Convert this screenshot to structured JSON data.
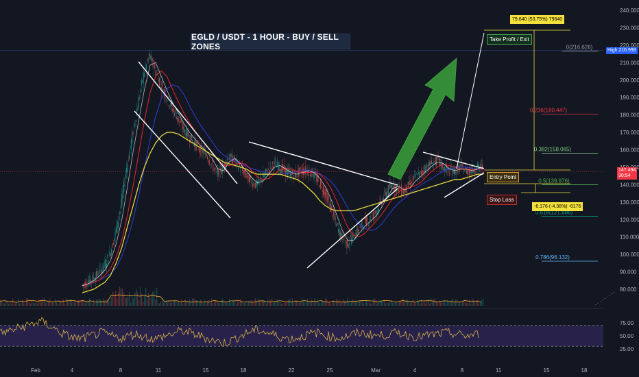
{
  "title": "EGLD / USDT - 1 HOUR - BUY / SELL ZONES",
  "colors": {
    "background": "#131722",
    "candle_up": "#26a69a",
    "candle_down": "#ef5350",
    "ma_yellow": "#e7d83b",
    "ma_blue": "#2f39c8",
    "ma_red": "#d8252a",
    "ma_white": "#ffffff",
    "rsi": "#d9b24a",
    "arrow": "#3aa23a"
  },
  "labels": {
    "take_profit": "Take Profit / Exit",
    "entry": "Entry Point",
    "stop_loss": "Stop Loss",
    "target_tag": "79.640 (53.75%) 79640",
    "stop_tag": "-6.176 (-4.38%) -6176",
    "high_tag_label": "High",
    "high_tag_value": "216.998",
    "price_tag_value": "147.494",
    "price_tag_timer": "30:54"
  },
  "chart_data": {
    "type": "line",
    "title": "EGLD / USDT - 1 HOUR - BUY / SELL ZONES",
    "y_ticks": [
      "240.000",
      "230.000",
      "220.000",
      "210.000",
      "200.000",
      "190.000",
      "180.000",
      "170.000",
      "160.000",
      "150.000",
      "140.000",
      "130.000",
      "120.000",
      "110.000",
      "100.000",
      "90.000",
      "80.000"
    ],
    "x_ticks": [
      "Feb",
      "4",
      "8",
      "11",
      "15",
      "18",
      "22",
      "25",
      "Mar",
      "4",
      "8",
      "11",
      "15",
      "18"
    ],
    "rsi_ticks": [
      "75.00",
      "50.00",
      "25.00"
    ],
    "ylim": [
      72,
      245
    ],
    "fib_levels": [
      {
        "label": "0(216.626)",
        "value": 216.626,
        "color": "#9598a1"
      },
      {
        "label": "0.236(180.447)",
        "value": 180.447,
        "color": "#f23645"
      },
      {
        "label": "0.382(158.065)",
        "value": 158.065,
        "color": "#81c784"
      },
      {
        "label": "0.5(139.976)",
        "value": 139.976,
        "color": "#4caf50"
      },
      {
        "label": "0.618(121.886)",
        "value": 121.886,
        "color": "#089981"
      },
      {
        "label": "0.786(96.132)",
        "value": 96.132,
        "color": "#64b5f6"
      }
    ],
    "series": [
      {
        "name": "Price",
        "values": [
          82,
          84,
          86,
          89,
          93,
          100,
          112,
          128,
          150,
          168,
          186,
          203,
          214,
          206,
          198,
          190,
          184,
          178,
          172,
          168,
          164,
          160,
          158,
          152,
          146,
          150,
          156,
          154,
          150,
          146,
          142,
          140,
          144,
          148,
          152,
          150,
          148,
          146,
          146,
          148,
          148,
          146,
          142,
          136,
          128,
          118,
          110,
          106,
          110,
          114,
          118,
          120,
          124,
          130,
          136,
          140,
          138,
          136,
          140,
          144,
          146,
          150,
          152,
          154,
          150,
          148,
          148,
          150,
          148,
          148,
          150,
          150
        ]
      },
      {
        "name": "MA",
        "values": [
          78,
          79,
          80,
          82,
          84,
          88,
          95,
          104,
          116,
          128,
          140,
          150,
          158,
          164,
          168,
          170,
          170,
          169,
          167,
          165,
          163,
          161,
          159,
          157,
          155,
          153,
          152,
          151,
          150,
          149,
          147,
          146,
          146,
          146,
          146,
          146,
          145,
          144,
          143,
          141,
          138,
          135,
          131,
          128,
          126,
          125,
          125,
          125,
          125,
          126,
          127,
          128,
          129,
          130,
          131,
          132,
          133,
          134,
          135,
          136,
          137,
          138,
          139,
          140,
          141,
          142,
          143,
          143,
          144,
          145,
          146,
          146
        ]
      }
    ],
    "rsi": [
      55,
      58,
      62,
      66,
      70,
      74,
      78,
      72,
      64,
      56,
      50,
      46,
      44,
      48,
      52,
      56,
      52,
      48,
      46,
      50,
      54,
      50,
      46,
      44,
      48,
      52,
      56,
      60,
      56,
      52,
      48,
      44,
      40,
      36,
      40,
      46,
      52,
      58,
      62,
      58,
      54,
      50,
      46,
      44,
      46,
      50,
      54,
      56,
      52,
      48,
      46,
      48,
      52,
      56,
      54,
      52,
      50,
      52,
      54,
      56,
      52,
      50,
      48,
      50,
      52,
      54,
      56,
      54,
      52,
      50,
      52,
      54
    ]
  }
}
